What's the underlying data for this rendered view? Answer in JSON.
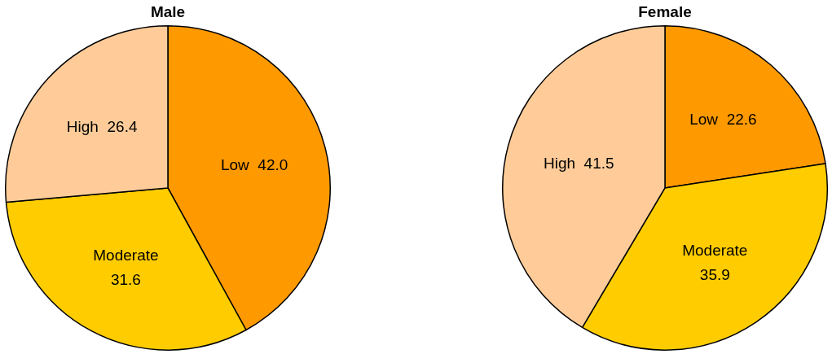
{
  "chart_data": [
    {
      "type": "pie",
      "title": "Male",
      "categories": [
        "Low",
        "Moderate",
        "High"
      ],
      "values": [
        42.0,
        31.6,
        26.4
      ],
      "value_labels": [
        "42.0",
        "31.6",
        "26.4"
      ],
      "colors": [
        "#ff9900",
        "#ffcc00",
        "#ffcc99"
      ],
      "legend": false
    },
    {
      "type": "pie",
      "title": "Female",
      "categories": [
        "Low",
        "Moderate",
        "High"
      ],
      "values": [
        22.6,
        35.9,
        41.5
      ],
      "value_labels": [
        "22.6",
        "35.9",
        "41.5"
      ],
      "colors": [
        "#ff9900",
        "#ffcc00",
        "#ffcc99"
      ],
      "legend": false
    }
  ]
}
